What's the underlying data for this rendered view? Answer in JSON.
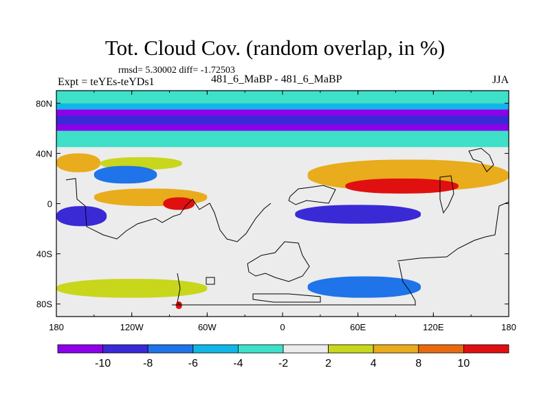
{
  "header": {
    "title": "Tot. Cloud Cov. (random overlap, in %)",
    "stats": "rmsd= 5.30002 diff= -1.72503",
    "experiment": "Expt = teYEs-teYDs1",
    "cases": "481_6_MaBP - 481_6_MaBP",
    "season": "JJA"
  },
  "chart_data": {
    "type": "heatmap",
    "title": "Tot. Cloud Cov. (random overlap, in %)",
    "subtitle": "481_6_MaBP - 481_6_MaBP",
    "xlabel": "",
    "ylabel": "",
    "xlim": [
      -180,
      180
    ],
    "ylim": [
      -90,
      90
    ],
    "x_ticks": [
      {
        "value": -180,
        "label": "180"
      },
      {
        "value": -120,
        "label": "120W"
      },
      {
        "value": -60,
        "label": "60W"
      },
      {
        "value": 0,
        "label": "0"
      },
      {
        "value": 60,
        "label": "60E"
      },
      {
        "value": 120,
        "label": "120E"
      },
      {
        "value": 180,
        "label": "180"
      }
    ],
    "y_ticks": [
      {
        "value": 80,
        "label": "80N"
      },
      {
        "value": 40,
        "label": "40N"
      },
      {
        "value": 0,
        "label": "0"
      },
      {
        "value": -40,
        "label": "40S"
      },
      {
        "value": -80,
        "label": "80S"
      }
    ],
    "colorbar": {
      "levels": [
        -10,
        -8,
        -6,
        -4,
        -2,
        2,
        4,
        8,
        10
      ],
      "labels": [
        "-10",
        "-8",
        "-6",
        "-4",
        "-2",
        "2",
        "4",
        "8",
        "10"
      ],
      "colors": [
        "#8e00ea",
        "#3a2ad6",
        "#1e74e8",
        "#10b6e6",
        "#3ee0c8",
        "#ececec",
        "#c8d61c",
        "#e8ac1c",
        "#e86a10",
        "#e01010"
      ]
    },
    "fields": [
      {
        "name": "polar-north-band",
        "lon": [
          -180,
          180
        ],
        "lat": [
          58,
          75
        ],
        "value": -11
      },
      {
        "name": "arctic-dark-band",
        "lon": [
          -180,
          180
        ],
        "lat": [
          63,
          70
        ],
        "value": -9
      },
      {
        "name": "arctic-teal-band",
        "lon": [
          -180,
          180
        ],
        "lat": [
          75,
          80
        ],
        "value": -5
      },
      {
        "name": "north-pole-cyan",
        "lon": [
          -180,
          180
        ],
        "lat": [
          80,
          90
        ],
        "value": -3
      },
      {
        "name": "midlat-blue-band",
        "lon": [
          -180,
          180
        ],
        "lat": [
          45,
          58
        ],
        "value": -4
      },
      {
        "name": "pacific-west-orange",
        "lon": [
          -180,
          -145
        ],
        "lat": [
          25,
          40
        ],
        "value": 6
      },
      {
        "name": "pacific-yellow",
        "lon": [
          -145,
          -80
        ],
        "lat": [
          27,
          37
        ],
        "value": 3
      },
      {
        "name": "n-pacific-blue",
        "lon": [
          -150,
          -100
        ],
        "lat": [
          16,
          30
        ],
        "value": -8
      },
      {
        "name": "itcz-orange",
        "lon": [
          -150,
          -60
        ],
        "lat": [
          -2,
          12
        ],
        "value": 6
      },
      {
        "name": "itcz-red-core",
        "lon": [
          -95,
          -70
        ],
        "lat": [
          -5,
          5
        ],
        "value": 11
      },
      {
        "name": "se-pacific-purple",
        "lon": [
          -180,
          -140
        ],
        "lat": [
          -18,
          -2
        ],
        "value": -10
      },
      {
        "name": "warm-pool-orange",
        "lon": [
          20,
          180
        ],
        "lat": [
          10,
          35
        ],
        "value": 7
      },
      {
        "name": "warm-pool-red",
        "lon": [
          50,
          140
        ],
        "lat": [
          8,
          20
        ],
        "value": 11
      },
      {
        "name": "indian-purple",
        "lon": [
          10,
          110
        ],
        "lat": [
          -16,
          -1
        ],
        "value": -10
      },
      {
        "name": "so-blue",
        "lon": [
          20,
          110
        ],
        "lat": [
          -75,
          -58
        ],
        "value": -7
      },
      {
        "name": "so-yellow",
        "lon": [
          -180,
          -60
        ],
        "lat": [
          -75,
          -60
        ],
        "value": 3
      },
      {
        "name": "antarctic-red",
        "lon": [
          -85,
          -80
        ],
        "lat": [
          -84,
          -78
        ],
        "value": 11
      }
    ],
    "contours": "continental coastlines (black outline)"
  }
}
